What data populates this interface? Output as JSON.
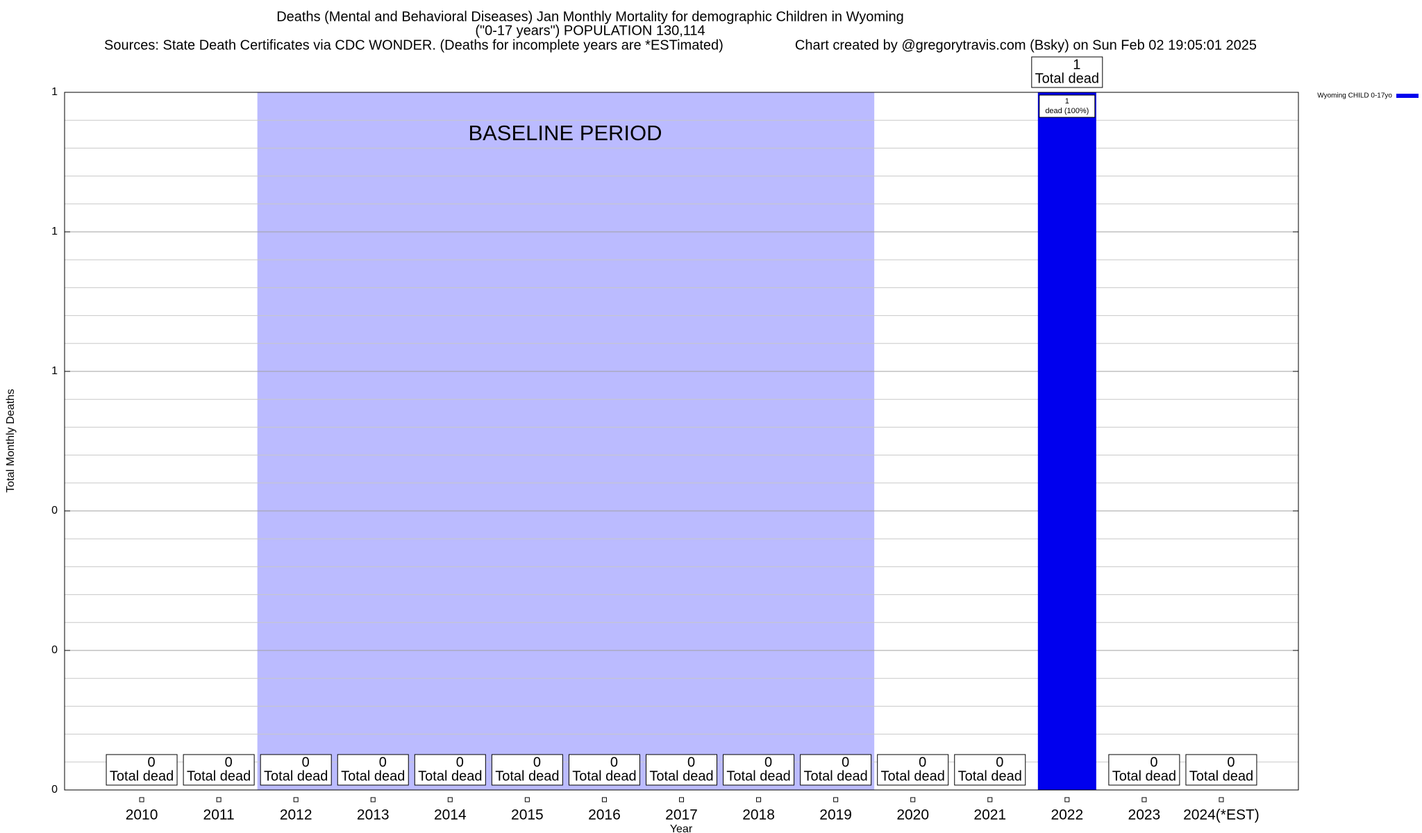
{
  "chart_data": {
    "type": "bar",
    "title": "Deaths (Mental and Behavioral Diseases) Jan Monthly Mortality for demographic Children in Wyoming",
    "subtitle": "(\"0-17 years\") POPULATION 130,114",
    "source": "Sources: State Death Certificates via CDC WONDER. (Deaths for incomplete years are *ESTimated)",
    "credit": "Chart created by @gregorytravis.com (Bsky) on Sun Feb 02 19:05:01 2025",
    "x_label": "Year",
    "y_label": "Total Monthly Deaths",
    "categories": [
      "2010",
      "2011",
      "2012",
      "2013",
      "2014",
      "2015",
      "2016",
      "2017",
      "2018",
      "2019",
      "2020",
      "2021",
      "2022",
      "2023",
      "2024(*EST)"
    ],
    "series": [
      {
        "name": "Wyoming CHILD 0-17yo",
        "color": "#0000ee",
        "values": [
          0,
          0,
          0,
          0,
          0,
          0,
          0,
          0,
          0,
          0,
          0,
          0,
          1,
          0,
          0
        ]
      }
    ],
    "total_label": "Total dead",
    "bar_note": "dead (100%)",
    "ylim": [
      0,
      1
    ],
    "yticks": [
      0,
      {
        "value": 0.2,
        "label": "0"
      },
      {
        "value": 0.4,
        "label": "0"
      },
      {
        "value": 0.6,
        "label": "1"
      },
      {
        "value": 0.8,
        "label": "1"
      },
      1
    ],
    "y_minor_ticks": [
      0.04,
      0.08,
      0.12,
      0.16,
      0.24,
      0.28,
      0.32,
      0.36,
      0.44,
      0.48,
      0.52,
      0.56,
      0.64,
      0.68,
      0.72,
      0.76,
      0.84,
      0.88,
      0.92,
      0.96
    ],
    "grid": true,
    "legend": "top-right",
    "baseline": {
      "label": "BASELINE PERIOD",
      "start": "2012",
      "end": "2019",
      "color": "#bbbbff"
    }
  }
}
